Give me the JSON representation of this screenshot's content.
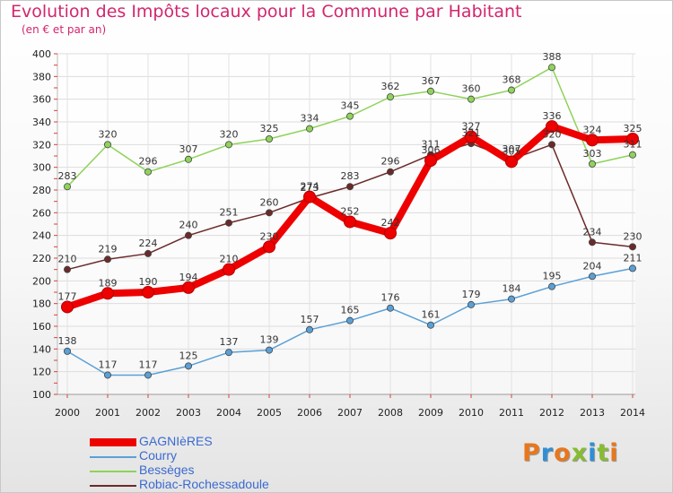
{
  "title": "Evolution des Impôts locaux pour la Commune par Habitant",
  "subtitle": "(en € et par an)",
  "logo": {
    "text": "Proxiti",
    "colors": [
      "#e8771c",
      "#2f8fd6",
      "#e8771c",
      "#87bc33",
      "#2f8fd6",
      "#87bc33",
      "#e8771c"
    ]
  },
  "chart_data": {
    "type": "line",
    "title": "Evolution des Impôts locaux pour la Commune par Habitant",
    "subtitle": "(en € et par an)",
    "x": [
      "2000",
      "2001",
      "2002",
      "2003",
      "2004",
      "2005",
      "2006",
      "2007",
      "2008",
      "2009",
      "2010",
      "2011",
      "2012",
      "2013",
      "2014"
    ],
    "ylim": [
      100,
      400
    ],
    "yticks": [
      100,
      120,
      140,
      160,
      180,
      200,
      220,
      240,
      260,
      280,
      300,
      320,
      340,
      360,
      380,
      400
    ],
    "grid": true,
    "legend_position": "bottom-left",
    "series": [
      {
        "name": "GAGNIèRES",
        "color": "#ee0000",
        "emphasis": true,
        "values": [
          177,
          189,
          190,
          194,
          210,
          230,
          274,
          252,
          242,
          306,
          327,
          305,
          336,
          324,
          325
        ],
        "labels": [
          "177",
          "189",
          "190",
          "194",
          "210",
          "230",
          "274",
          "252",
          "242",
          "306",
          "327",
          "305",
          "336",
          "324",
          "325"
        ]
      },
      {
        "name": "Courry",
        "color": "#5aa0d6",
        "emphasis": false,
        "values": [
          138,
          117,
          117,
          125,
          137,
          139,
          157,
          165,
          176,
          161,
          179,
          184,
          195,
          204,
          211
        ],
        "labels": [
          "138",
          "117",
          "117",
          "125",
          "137",
          "139",
          "157",
          "165",
          "176",
          "161",
          "179",
          "184",
          "195",
          "204",
          "211"
        ]
      },
      {
        "name": "Bessèges",
        "color": "#8fd35a",
        "emphasis": false,
        "values": [
          283,
          320,
          296,
          307,
          320,
          325,
          334,
          345,
          362,
          367,
          360,
          368,
          388,
          303,
          311
        ],
        "labels": [
          "283",
          "320",
          "296",
          "307",
          "320",
          "325",
          "334",
          "345",
          "362",
          "367",
          "360",
          "368",
          "388",
          "303",
          "311"
        ]
      },
      {
        "name": "Robiac-Rochessadoule",
        "color": "#6b2a2a",
        "emphasis": false,
        "values": [
          210,
          219,
          224,
          240,
          251,
          260,
          273,
          283,
          296,
          311,
          321,
          307,
          320,
          234,
          230
        ],
        "labels": [
          "210",
          "219",
          "224",
          "240",
          "251",
          "260",
          "273",
          "283",
          "296",
          "311",
          "321",
          "307",
          "320",
          "234",
          "230"
        ]
      }
    ]
  }
}
